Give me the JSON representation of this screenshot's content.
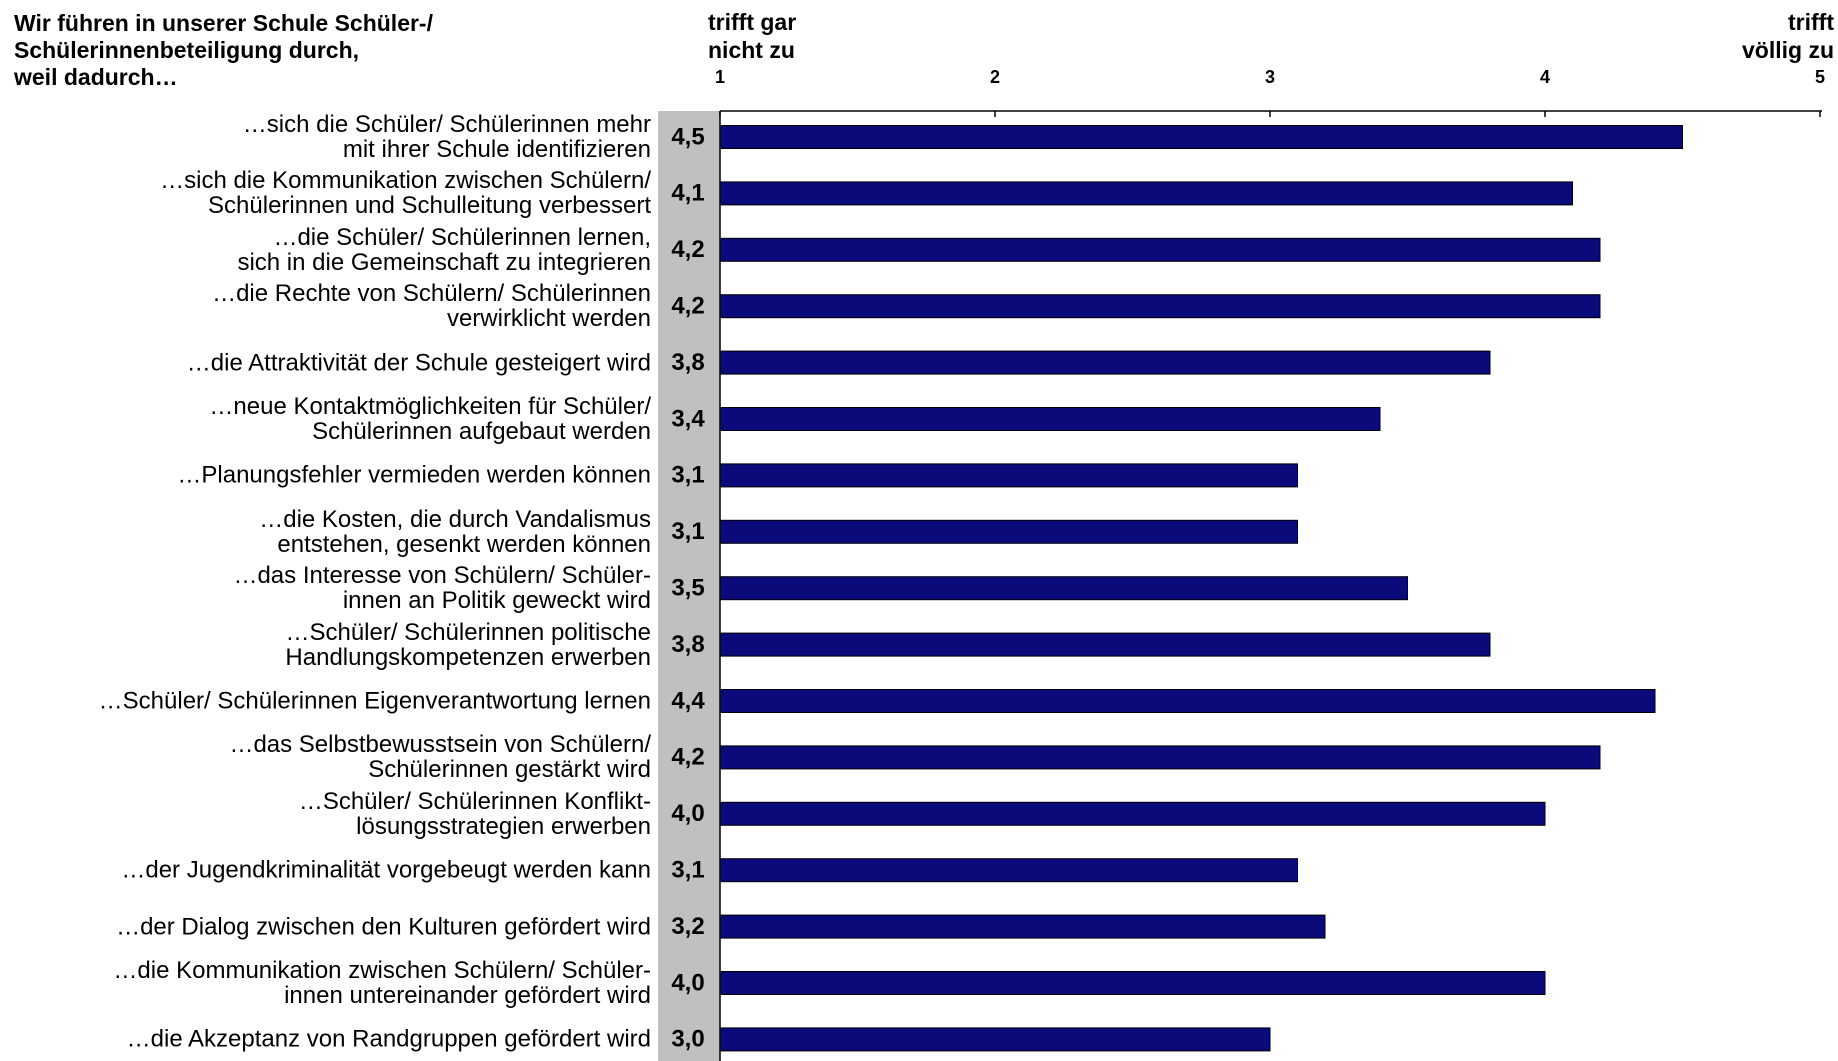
{
  "chart_data": {
    "type": "barh",
    "title": "Wir führen in unserer Schule Schüler-/\nSchülerinnenbeteiligung durch,\nweil dadurch…",
    "axis_low_label": "trifft gar\nnicht zu",
    "axis_high_label": "trifft\nvöllig zu",
    "categories": [
      "…sich die Schüler/ Schülerinnen mehr\nmit ihrer Schule identifizieren",
      "…sich die Kommunikation zwischen Schülern/\nSchülerinnen und Schulleitung verbessert",
      "…die Schüler/ Schülerinnen lernen,\nsich in die Gemeinschaft zu integrieren",
      "…die Rechte von Schülern/ Schülerinnen\nverwirklicht werden",
      "…die Attraktivität der Schule gesteigert wird",
      "…neue Kontaktmöglichkeiten für Schüler/\nSchülerinnen aufgebaut werden",
      "…Planungsfehler vermieden werden können",
      "…die Kosten, die durch Vandalismus\nentstehen, gesenkt werden können",
      "…das Interesse von Schülern/ Schüler-\ninnen an Politik geweckt wird",
      "…Schüler/ Schülerinnen politische\nHandlungskompetenzen erwerben",
      "…Schüler/ Schülerinnen Eigenverantwortung lernen",
      "…das Selbstbewusstsein von Schülern/\nSchülerinnen gestärkt wird",
      "…Schüler/ Schülerinnen Konflikt-\nlösungsstrategien erwerben",
      "…der Jugendkriminalität vorgebeugt werden kann",
      "…der Dialog zwischen den Kulturen gefördert wird",
      "…die Kommunikation zwischen Schülern/ Schüler-\ninnen untereinander gefördert wird",
      "…die Akzeptanz von Randgruppen gefördert wird"
    ],
    "values": [
      4.5,
      4.1,
      4.2,
      4.2,
      3.8,
      3.4,
      3.1,
      3.1,
      3.5,
      3.8,
      4.4,
      4.2,
      4.0,
      3.1,
      3.2,
      4.0,
      3.0
    ],
    "value_labels": [
      "4,5",
      "4,1",
      "4,2",
      "4,2",
      "3,8",
      "3,4",
      "3,1",
      "3,1",
      "3,5",
      "3,8",
      "4,4",
      "4,2",
      "4,0",
      "3,1",
      "3,2",
      "4,0",
      "3,0"
    ],
    "color": "#0a0a7a",
    "xlim": [
      1,
      5
    ],
    "xticks": [
      1,
      2,
      3,
      4,
      5
    ]
  }
}
